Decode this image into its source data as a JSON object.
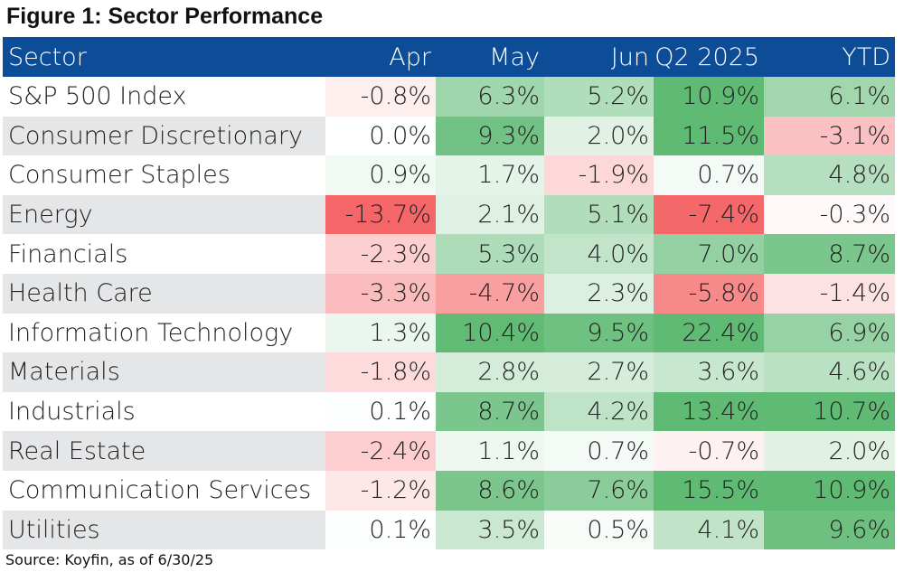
{
  "title": "Figure 1: Sector Performance",
  "source": "Source: Koyfin, as of 6/30/25",
  "colors": {
    "header_bg": "#0d4d97",
    "header_text": "#ffffff",
    "positive": "#5fba74",
    "negative": "#f56668",
    "neutral": "#ffffff",
    "label_even_bg": "#e5e6e8"
  },
  "chart_data": {
    "type": "heatmap",
    "columns": [
      "Sector",
      "Apr",
      "May",
      "Jun",
      "Q2 2025",
      "YTD"
    ],
    "rows": [
      {
        "sector": "S&P 500 Index",
        "values": [
          -0.8,
          6.3,
          5.2,
          10.9,
          6.1
        ],
        "labels": [
          "-0.8%",
          "6.3%",
          "5.2%",
          "10.9%",
          "6.1%"
        ]
      },
      {
        "sector": "Consumer Discretionary",
        "values": [
          0.0,
          9.3,
          2.0,
          11.5,
          -3.1
        ],
        "labels": [
          "0.0%",
          "9.3%",
          "2.0%",
          "11.5%",
          "-3.1%"
        ]
      },
      {
        "sector": "Consumer Staples",
        "values": [
          0.9,
          1.7,
          -1.9,
          0.7,
          4.8
        ],
        "labels": [
          "0.9%",
          "1.7%",
          "-1.9%",
          "0.7%",
          "4.8%"
        ]
      },
      {
        "sector": "Energy",
        "values": [
          -13.7,
          2.1,
          5.1,
          -7.4,
          -0.3
        ],
        "labels": [
          "-13.7%",
          "2.1%",
          "5.1%",
          "-7.4%",
          "-0.3%"
        ]
      },
      {
        "sector": "Financials",
        "values": [
          -2.3,
          5.3,
          4.0,
          7.0,
          8.7
        ],
        "labels": [
          "-2.3%",
          "5.3%",
          "4.0%",
          "7.0%",
          "8.7%"
        ]
      },
      {
        "sector": "Health Care",
        "values": [
          -3.3,
          -4.7,
          2.3,
          -5.8,
          -1.4
        ],
        "labels": [
          "-3.3%",
          "-4.7%",
          "2.3%",
          "-5.8%",
          "-1.4%"
        ]
      },
      {
        "sector": "Information Technology",
        "values": [
          1.3,
          10.4,
          9.5,
          22.4,
          6.9
        ],
        "labels": [
          "1.3%",
          "10.4%",
          "9.5%",
          "22.4%",
          "6.9%"
        ]
      },
      {
        "sector": "Materials",
        "values": [
          -1.8,
          2.8,
          2.7,
          3.6,
          4.6
        ],
        "labels": [
          "-1.8%",
          "2.8%",
          "2.7%",
          "3.6%",
          "4.6%"
        ]
      },
      {
        "sector": "Industrials",
        "values": [
          0.1,
          8.7,
          4.2,
          13.4,
          10.7
        ],
        "labels": [
          "0.1%",
          "8.7%",
          "4.2%",
          "13.4%",
          "10.7%"
        ]
      },
      {
        "sector": "Real Estate",
        "values": [
          -2.4,
          1.1,
          0.7,
          -0.7,
          2.0
        ],
        "labels": [
          "-2.4%",
          "1.1%",
          "0.7%",
          "-0.7%",
          "2.0%"
        ]
      },
      {
        "sector": "Communication Services",
        "values": [
          -1.2,
          8.6,
          7.6,
          15.5,
          10.9
        ],
        "labels": [
          "-1.2%",
          "8.6%",
          "7.6%",
          "15.5%",
          "10.9%"
        ]
      },
      {
        "sector": "Utilities",
        "values": [
          0.1,
          3.5,
          0.5,
          4.1,
          9.6
        ],
        "labels": [
          "0.1%",
          "3.5%",
          "0.5%",
          "4.1%",
          "9.6%"
        ]
      }
    ]
  }
}
